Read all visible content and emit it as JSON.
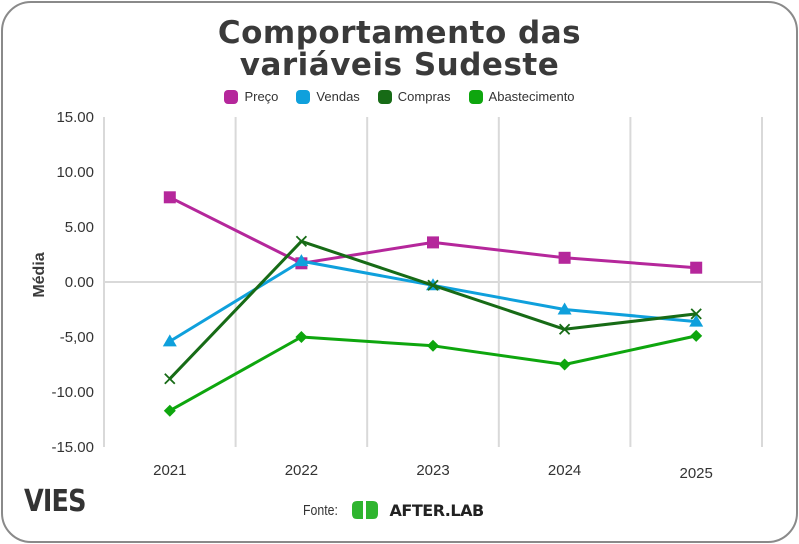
{
  "chart_data": {
    "type": "line",
    "title": "Comportamento das variáveis Sudeste",
    "title_lines": [
      "Comportamento das",
      "variáveis Sudeste"
    ],
    "xlabel": "",
    "ylabel": "Média",
    "categories": [
      "2021",
      "2022",
      "2023",
      "2024",
      "2025"
    ],
    "ylim": [
      -15,
      15
    ],
    "yticks": [
      15,
      10,
      5,
      0,
      -5,
      -10,
      -15
    ],
    "ytick_labels": [
      "15.00",
      "10.00",
      "5.00",
      "0.00",
      "-5,00",
      "-10.00",
      "-15.00"
    ],
    "grid": true,
    "legend_position": "top-center",
    "series": [
      {
        "name": "Preço",
        "color": "#b5279b",
        "marker": "square",
        "values": [
          7.7,
          1.7,
          3.6,
          2.2,
          1.3
        ]
      },
      {
        "name": "Vendas",
        "color": "#0fa0dc",
        "marker": "triangle",
        "values": [
          -5.4,
          1.9,
          -0.3,
          -2.5,
          -3.6
        ]
      },
      {
        "name": "Compras",
        "color": "#176b16",
        "marker": "x",
        "values": [
          -8.8,
          3.7,
          -0.3,
          -4.3,
          -2.9
        ]
      },
      {
        "name": "Abastecimento",
        "color": "#0ea60e",
        "marker": "diamond",
        "values": [
          -11.7,
          -5.0,
          -5.8,
          -7.5,
          -4.9
        ]
      }
    ]
  },
  "branding": {
    "left_logo": "VIES",
    "source_label": "Fonte:",
    "source_name": "AFTER.LAB",
    "source_logo_color": "#2fb52f"
  }
}
